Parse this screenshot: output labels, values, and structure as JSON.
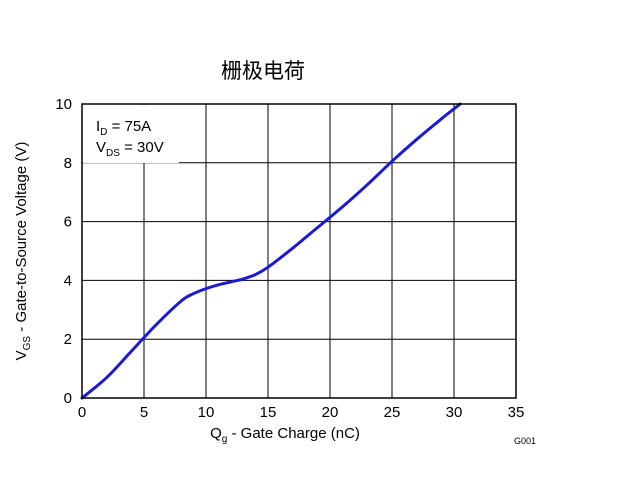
{
  "chart_data": {
    "type": "line",
    "title": "栅极电荷",
    "xlabel": {
      "main": "Q",
      "sub": "g",
      "rest": " - Gate Charge  (nC)"
    },
    "ylabel": {
      "main": "V",
      "sub": "GS",
      "rest": " - Gate-to-Source Voltage (V)"
    },
    "xlim": [
      0,
      35
    ],
    "ylim": [
      0,
      10
    ],
    "xticks": [
      0,
      5,
      10,
      15,
      20,
      25,
      30,
      35
    ],
    "yticks": [
      0,
      2,
      4,
      6,
      8,
      10
    ],
    "grid": true,
    "annotations": [
      {
        "main": "I",
        "sub": "D",
        "rest": " = 75A"
      },
      {
        "main": "V",
        "sub": "DS",
        "rest": " = 30V"
      }
    ],
    "figure_id": "G001",
    "line_color": "#1a1ad6",
    "series": [
      {
        "x": [
          0,
          2,
          4,
          6,
          8,
          9,
          10,
          11,
          12,
          13,
          14,
          15,
          17,
          19,
          21,
          23,
          25,
          27,
          29,
          30.5
        ],
        "y": [
          0,
          0.7,
          1.6,
          2.5,
          3.3,
          3.55,
          3.72,
          3.85,
          3.95,
          4.05,
          4.2,
          4.45,
          5.1,
          5.8,
          6.5,
          7.25,
          8.05,
          8.8,
          9.5,
          10.0
        ]
      }
    ]
  }
}
